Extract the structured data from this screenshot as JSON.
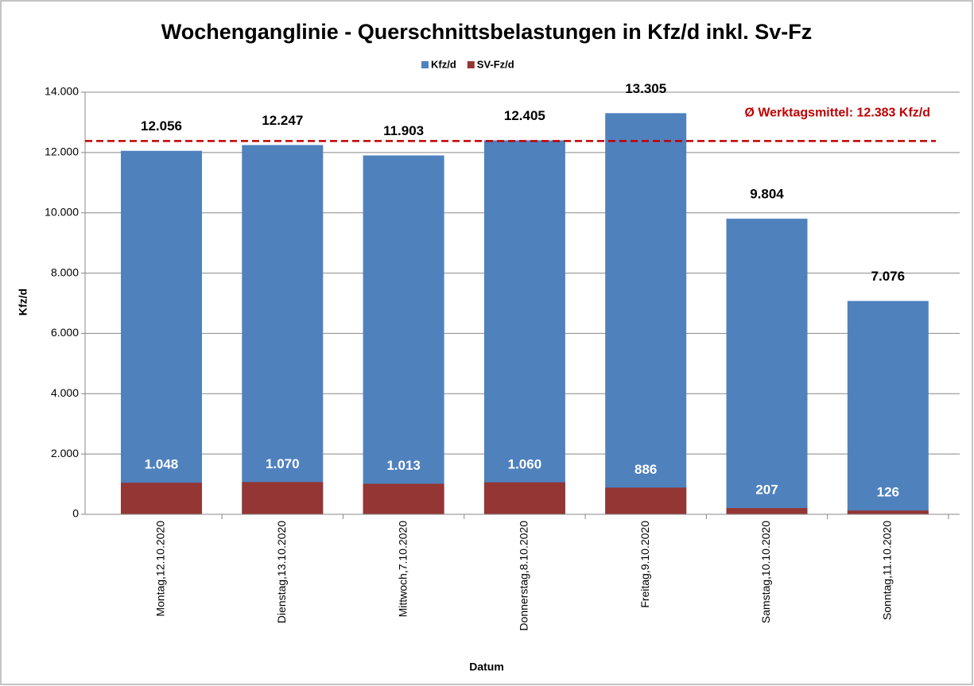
{
  "chart_data": {
    "type": "bar",
    "barmode": "overlay",
    "title": "Wochenganglinie - Querschnittsbelastungen in Kfz/d inkl. Sv-Fz",
    "x_label": "Datum",
    "y_label": "Kfz/d",
    "categories": [
      "Montag,12.10.2020",
      "Dienstag,13.10.2020",
      "Mittwoch,7.10.2020",
      "Donnerstag,8.10.2020",
      "Freitag,9.10.2020",
      "Samstag,10.10.2020",
      "Sonntag,11.10.2020"
    ],
    "series": [
      {
        "name": "Kfz/d",
        "color": "#4f81bd",
        "values": [
          12056,
          12247,
          11903,
          12405,
          13305,
          9804,
          7076
        ],
        "value_labels": [
          "12.056",
          "12.247",
          "11.903",
          "12.405",
          "13.305",
          "9.804",
          "7.076"
        ]
      },
      {
        "name": "SV-Fz/d",
        "color": "#943634",
        "values": [
          1048,
          1070,
          1013,
          1060,
          886,
          207,
          126
        ],
        "value_labels": [
          "1.048",
          "1.070",
          "1.013",
          "1.060",
          "886",
          "207",
          "126"
        ]
      }
    ],
    "ylim": [
      0,
      14000
    ],
    "yticks": [
      0,
      {
        "value": 2000,
        "label": "2.000"
      },
      {
        "value": 4000,
        "label": "4.000"
      },
      {
        "value": 6000,
        "label": "6.000"
      },
      {
        "value": 8000,
        "label": "8.000"
      },
      {
        "value": 10000,
        "label": "10.000"
      },
      {
        "value": 12000,
        "label": "12.000"
      },
      {
        "value": 14000,
        "label": "14.000"
      }
    ],
    "grid": true,
    "legend": "top",
    "reference_line": {
      "value": 12383,
      "label": "Ø Werktagsmittel: 12.383 Kfz/d",
      "color": "#c00000"
    }
  }
}
